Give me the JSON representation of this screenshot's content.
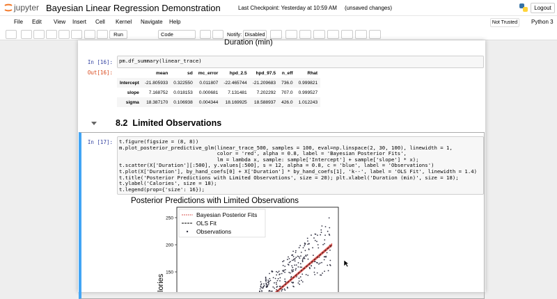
{
  "header": {
    "logo": "jupyter",
    "title": "Bayesian Linear Regression Demonstration",
    "checkpoint": "Last Checkpoint: Yesterday at 10:59 AM",
    "status": "(unsaved changes)",
    "logout": "Logout"
  },
  "menu": {
    "items": [
      "File",
      "Edit",
      "View",
      "Insert",
      "Cell",
      "Kernel",
      "Navigate",
      "Help"
    ],
    "trusted": "Not Trusted",
    "kernel": "Python 3"
  },
  "toolbar": {
    "run": "Run",
    "cell_type": "Code",
    "notify_label": "Notify:",
    "notify_value": "Disabled"
  },
  "notebook": {
    "prev_output": "Duration (min)",
    "cell16": {
      "prompt": "In [16]:",
      "code": "pm.df_summary(linear_trace)",
      "out_prompt": "Out[16]:",
      "table": {
        "columns": [
          "mean",
          "sd",
          "mc_error",
          "hpd_2.5",
          "hpd_97.5",
          "n_eff",
          "Rhat"
        ],
        "rows": [
          [
            "Intercept",
            "-21.805933",
            "0.322550",
            "0.011807",
            "-22.465744",
            "-21.209683",
            "736.0",
            "0.999821"
          ],
          [
            "slope",
            "7.168752",
            "0.018153",
            "0.000681",
            "7.131481",
            "7.202292",
            "707.0",
            "0.999527"
          ],
          [
            "sigma",
            "18.387170",
            "0.106938",
            "0.004344",
            "18.169925",
            "18.588937",
            "426.0",
            "1.012243"
          ]
        ]
      }
    },
    "heading": {
      "number": "8.2",
      "text": "Limited Observations"
    },
    "cell17": {
      "prompt": "In [17]:",
      "code": [
        "t.figure(figsize = (8, 8))",
        "m.plot_posterior_predictive_glm(linear_trace_500, samples = 100, eval=np.linspace(2, 30, 100), linewidth = 1,",
        "                                color = 'red', alpha = 0.8, label = 'Bayesian Posterior Fits',",
        "                                lm = lambda x, sample: sample['Intercept'] + sample['slope'] * x);",
        "t.scatter(X['Duration'][:500], y.values[:500], s = 12, alpha = 0.8, c = 'blue', label = 'Observations')",
        "t.plot(X['Duration'], by_hand_coefs[0] + X['Duration'] * by_hand_coefs[1], 'k--', label = 'OLS Fit', linewidth = 1.4)",
        "t.title('Posterior Predictions with Limited Observations', size = 20); plt.xlabel('Duration (min)', size = 18);",
        "t.ylabel('Calories', size = 18);",
        "t.legend(prop={'size': 16});"
      ],
      "plot": {
        "title": "Posterior Predictions with Limited Observations",
        "legend": [
          "Bayesian Posterior Fits",
          "OLS Fit",
          "Observations"
        ],
        "yticks": [
          "250",
          "200",
          "150"
        ],
        "ylabel": "lories"
      }
    }
  }
}
